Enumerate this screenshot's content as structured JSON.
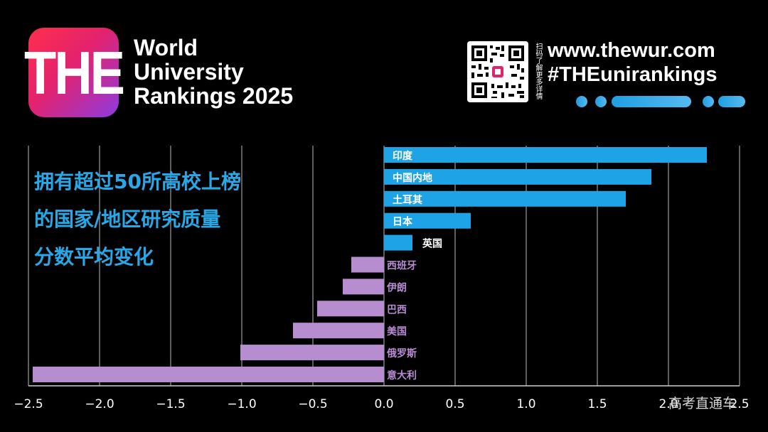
{
  "header": {
    "logo_text": "THE",
    "title_lines": [
      "World",
      "University",
      "Rankings 2025"
    ],
    "qr_caption": "扫码了解更多详情",
    "website": "www.thewur.com",
    "hashtag": "#THEunirankings"
  },
  "colors": {
    "background": "#000000",
    "positive_bar": "#1ea3e6",
    "negative_bar": "#b68ed0",
    "title_blue": "#29a8e8",
    "negative_label": "#b88cd4"
  },
  "watermark": "高考直通车",
  "chart_data": {
    "type": "bar",
    "orientation": "horizontal",
    "title": "拥有超过50所高校上榜的国家/地区研究质量分数平均变化",
    "title_lines": [
      "拥有超过50所高校上榜",
      "的国家/地区研究质量",
      "分数平均变化"
    ],
    "categories": [
      "印度",
      "中国内地",
      "土耳其",
      "日本",
      "英国",
      "西班牙",
      "伊朗",
      "巴西",
      "美国",
      "俄罗斯",
      "意大利"
    ],
    "values": [
      2.27,
      1.88,
      1.7,
      0.61,
      0.2,
      -0.23,
      -0.29,
      -0.47,
      -0.64,
      -1.01,
      -2.47
    ],
    "xlim": [
      -2.5,
      2.5
    ],
    "xticks": [
      -2.5,
      -2.0,
      -1.5,
      -1.0,
      -0.5,
      0.0,
      0.5,
      1.0,
      1.5,
      2.0,
      2.5
    ],
    "xtick_labels": [
      "−2.5",
      "−2.0",
      "−1.5",
      "−1.0",
      "−0.5",
      "0.0",
      "0.5",
      "1.0",
      "1.5",
      "2.0",
      "2.5"
    ],
    "grid": true,
    "legend": "none"
  }
}
